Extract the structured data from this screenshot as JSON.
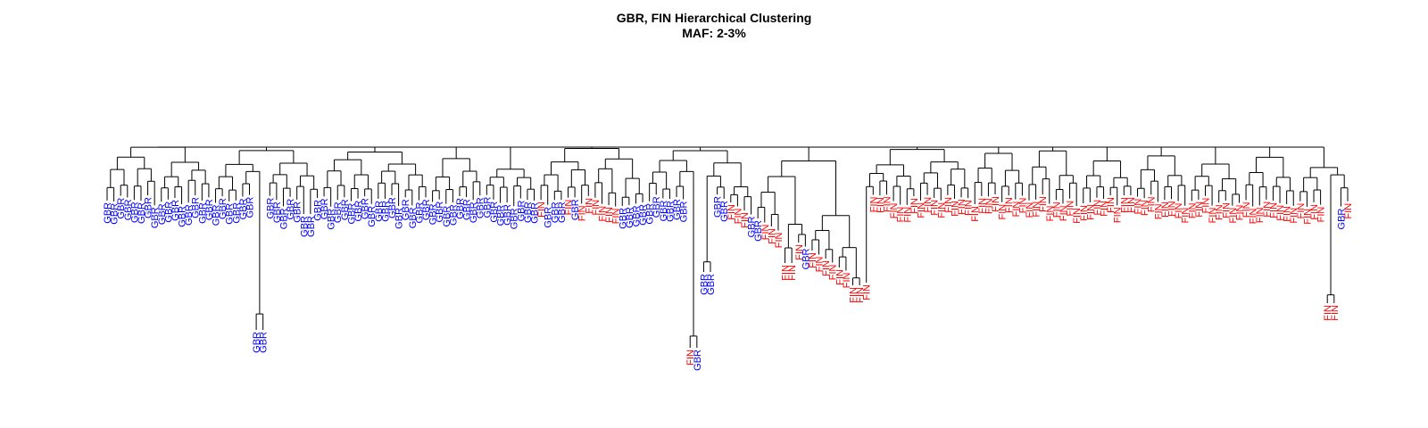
{
  "chart_data": {
    "type": "dendrogram",
    "title": "GBR, FIN Hierarchical Clustering",
    "subtitle": "MAF: 2-3%",
    "xlabel": "",
    "ylabel": "",
    "grid": false,
    "legend": "none",
    "group_colors": {
      "GBR": "#0000ff",
      "FIN": "#ff0000"
    },
    "line_color": "#000000",
    "leaf_order": "GBR,GBR,GBR,GBR,GBR,GBR,GBR,GBR,GBR,GBR,GBR,GBR,GBR,GBR,GBR,GBR,GBR,GBR,GBR,GBR,GBR,GBR,GBR,GBR,GBR,GBR,GBR,GBR,GBR,GBR,GBR,GBR,GBR,GBR,GBR,GBR,GBR,GBR,GBR,GBR,GBR,GBR,GBR,GBR,GBR,GBR,GBR,GBR,GBR,GBR,GBR,GBR,GBR,GBR,GBR,GBR,GBR,GBR,GBR,GBR,GBR,GBR,GBR,GBR,FIN,GBR,GBR,GBR,FIN,GBR,FIN,FIN,FIN,FIN,FIN,FIN,GBR,GBR,GBR,GBR,GBR,GBR,GBR,GBR,GBR,GBR,FIN,GBR,GBR,GBR,GBR,GBR,FIN,FIN,FIN,GBR,GBR,FIN,FIN,FIN,FIN,FIN,FIN,GBR,FIN,FIN,FIN,FIN,FIN,FIN,FIN,FIN,FIN,FIN,FIN,FIN,FIN,FIN,FIN,FIN,FIN,FIN,FIN,FIN,FIN,FIN,FIN,FIN,FIN,FIN,FIN,FIN,FIN,FIN,FIN,FIN,FIN,FIN,FIN,FIN,FIN,FIN,FIN,FIN,FIN,FIN,FIN,FIN,FIN,FIN,FIN,FIN,FIN,FIN,FIN,FIN,FIN,FIN,FIN,FIN,FIN,FIN,FIN,FIN,FIN,FIN,FIN,FIN,FIN,FIN,FIN,FIN,FIN,FIN,FIN,FIN,FIN,FIN,FIN,FIN,FIN,FIN,GBR,FIN"
  }
}
